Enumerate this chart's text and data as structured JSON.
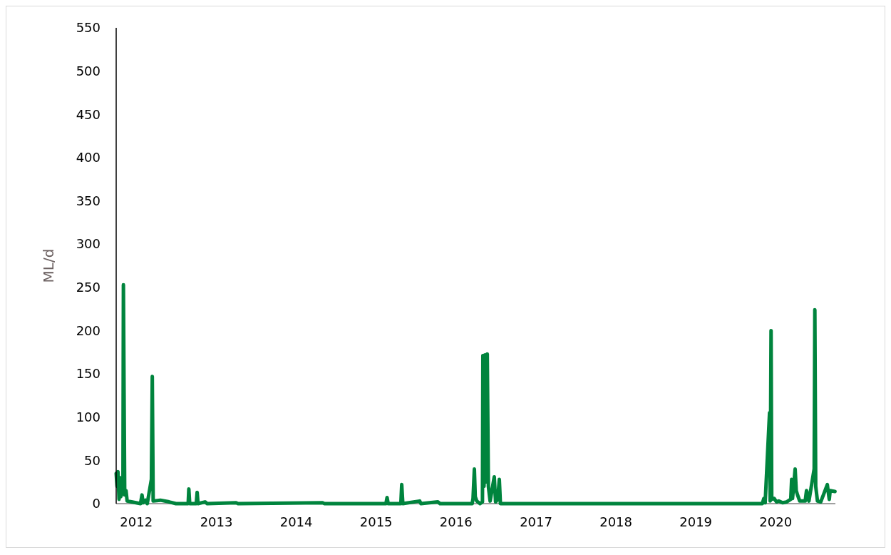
{
  "chart_data": {
    "type": "line",
    "ylabel": "ML/d",
    "x": [
      "2011-10-01",
      "2011-10-05",
      "2011-10-09",
      "2011-10-14",
      "2011-10-18",
      "2011-10-22",
      "2011-10-27",
      "2011-11-01",
      "2011-11-03",
      "2011-11-06",
      "2011-11-09",
      "2011-11-15",
      "2011-11-20",
      "2011-12-10",
      "2012-01-20",
      "2012-01-27",
      "2012-02-01",
      "2012-02-12",
      "2012-02-20",
      "2012-03-10",
      "2012-03-14",
      "2012-03-18",
      "2012-04-20",
      "2012-05-30",
      "2012-06-30",
      "2012-08-25",
      "2012-08-28",
      "2012-09-01",
      "2012-10-01",
      "2012-10-05",
      "2012-10-09",
      "2012-11-10",
      "2012-11-20",
      "2013-04-01",
      "2013-04-10",
      "2014-05-01",
      "2014-05-10",
      "2015-02-15",
      "2015-02-20",
      "2015-02-25",
      "2015-04-24",
      "2015-04-28",
      "2015-05-03",
      "2015-07-19",
      "2015-07-25",
      "2015-10-10",
      "2015-10-20",
      "2016-03-15",
      "2016-03-19",
      "2016-03-25",
      "2016-03-29",
      "2016-04-05",
      "2016-04-20",
      "2016-05-01",
      "2016-05-03",
      "2016-05-08",
      "2016-05-13",
      "2016-05-17",
      "2016-05-23",
      "2016-05-28",
      "2016-06-05",
      "2016-06-24",
      "2016-06-30",
      "2016-07-10",
      "2016-07-17",
      "2016-07-22",
      "2019-11-01",
      "2019-11-08",
      "2019-11-14",
      "2019-12-04",
      "2019-12-07",
      "2019-12-11",
      "2019-12-14",
      "2019-12-25",
      "2020-01-05",
      "2020-01-15",
      "2020-02-02",
      "2020-02-20",
      "2020-03-10",
      "2020-03-14",
      "2020-03-18",
      "2020-03-30",
      "2020-04-04",
      "2020-04-10",
      "2020-04-20",
      "2020-05-15",
      "2020-05-21",
      "2020-06-01",
      "2020-06-25",
      "2020-06-28",
      "2020-07-02",
      "2020-07-10",
      "2020-07-25",
      "2020-08-24",
      "2020-08-28",
      "2020-09-02",
      "2020-09-06",
      "2020-09-28"
    ],
    "series": [
      {
        "color": "#00843d",
        "values": [
          35,
          20,
          37,
          5,
          30,
          8,
          12,
          20,
          253,
          128,
          10,
          15,
          3,
          2,
          0,
          10,
          1,
          4,
          0,
          28,
          147,
          3,
          4,
          2,
          0,
          0,
          17,
          0,
          0,
          13,
          0,
          2,
          0,
          1,
          0,
          1,
          0,
          0,
          7,
          0,
          0,
          22,
          0,
          3,
          0,
          2,
          0,
          0,
          6,
          40,
          8,
          3,
          0,
          2,
          171,
          20,
          172,
          25,
          173,
          20,
          3,
          31,
          2,
          5,
          28,
          0,
          0,
          6,
          1,
          105,
          3,
          200,
          5,
          6,
          2,
          3,
          1,
          2,
          5,
          28,
          6,
          40,
          15,
          10,
          3,
          3,
          15,
          3,
          40,
          224,
          20,
          3,
          2,
          22,
          14,
          5,
          15,
          14
        ]
      }
    ],
    "xlim": [
      "2011-10-01",
      "2020-09-30"
    ],
    "xticks": [
      {
        "value": "2012-01-01",
        "label": "2012"
      },
      {
        "value": "2013-01-01",
        "label": "2013"
      },
      {
        "value": "2014-01-01",
        "label": "2014"
      },
      {
        "value": "2015-01-01",
        "label": "2015"
      },
      {
        "value": "2016-01-01",
        "label": "2016"
      },
      {
        "value": "2017-01-01",
        "label": "2017"
      },
      {
        "value": "2018-01-01",
        "label": "2018"
      },
      {
        "value": "2019-01-01",
        "label": "2019"
      },
      {
        "value": "2020-01-01",
        "label": "2020"
      }
    ],
    "ylim": [
      0,
      550
    ],
    "yticks": [
      0,
      50,
      100,
      150,
      200,
      250,
      300,
      350,
      400,
      450,
      500,
      550
    ],
    "grid": false,
    "marker": "none",
    "line_style": "solid"
  }
}
